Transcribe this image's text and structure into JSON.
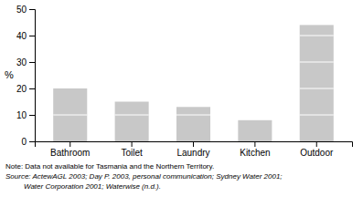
{
  "chart_data": {
    "type": "bar",
    "stacked": true,
    "categories": [
      "Bathroom",
      "Toilet",
      "Laundry",
      "Kitchen",
      "Outdoor"
    ],
    "series": [
      {
        "values": [
          10,
          10,
          10,
          8,
          10
        ]
      },
      {
        "values": [
          10,
          5,
          3,
          null,
          10
        ]
      },
      {
        "values": [
          null,
          null,
          null,
          null,
          10
        ]
      },
      {
        "values": [
          null,
          null,
          null,
          null,
          10
        ]
      },
      {
        "values": [
          null,
          null,
          null,
          null,
          4
        ]
      }
    ],
    "color": "#c8c8c8",
    "ylabel": "%",
    "ylim": [
      0,
      50
    ],
    "yticks": [
      0,
      10,
      20,
      30,
      40,
      50
    ],
    "annotations": [
      "Note: Data not available for Tasmania and the Northern Territory.",
      "Source: ActewAGL 2003; Day P. 2003, personal communication; Sydney Water 2001;",
      "         Water Corporation 2001; Waterwise (n.d.)."
    ]
  }
}
